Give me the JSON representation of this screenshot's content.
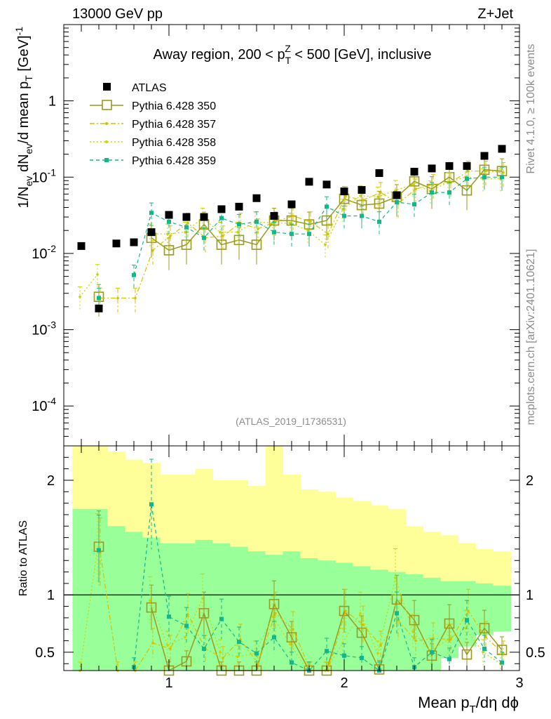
{
  "header": {
    "energy_label": "13000 GeV pp",
    "process_label": "Z+Jet",
    "region_pre": "Away region, 200 < p",
    "region_sub": "T",
    "region_sup": "Z",
    "region_post": " < 500 [GeV], inclusive",
    "analysis_id": "(ATLAS_2019_I1736531)",
    "rivet_label": "Rivet 4.1.0, ≥ 100k events",
    "mcplots_label": "mcplots.cern.ch [arXiv:2401.10621]"
  },
  "colors": {
    "ATLAS": "#000000",
    "s350": "#9a9a1e",
    "s357": "#d4c200",
    "s358": "#c8d400",
    "s359": "#13b88a",
    "band_inner": "#99ff99",
    "band_outer": "#ffff99"
  },
  "chart_data": [
    {
      "type": "scatter",
      "role": "main",
      "yscale": "log",
      "ylabel": "1/N_ev dN_ev/d mean p_T [GeV]^-1",
      "ylabel_parts": {
        "a": "1/N",
        "a_sub": "ev",
        "b": " dN",
        "b_sub": "ev",
        "c": "/d mean p",
        "c_sub": "T",
        "d": " [GeV]",
        "d_sup": "-1"
      },
      "xlim": [
        0.4,
        3.0
      ],
      "ylim": [
        3e-05,
        10
      ],
      "yticks": [
        {
          "value": 0.0001,
          "base": "10",
          "exp": "-4"
        },
        {
          "value": 0.001,
          "base": "10",
          "exp": "-3"
        },
        {
          "value": 0.01,
          "base": "10",
          "exp": "-2"
        },
        {
          "value": 0.1,
          "base": "10",
          "exp": "-1"
        },
        {
          "value": 1,
          "base": "1",
          "exp": ""
        }
      ],
      "legend_location": "top-left",
      "legend": [
        "ATLAS",
        "Pythia 6.428 350",
        "Pythia 6.428 357",
        "Pythia 6.428 358",
        "Pythia 6.428 359"
      ],
      "x": [
        0.5,
        0.6,
        0.7,
        0.8,
        0.9,
        1.0,
        1.1,
        1.2,
        1.3,
        1.4,
        1.5,
        1.6,
        1.7,
        1.8,
        1.9,
        2.0,
        2.1,
        2.2,
        2.3,
        2.4,
        2.5,
        2.6,
        2.7,
        2.8,
        2.9
      ],
      "series": [
        {
          "name": "ATLAS",
          "key": "ATLAS",
          "style": "data",
          "values": [
            0.0125,
            0.0019,
            0.0135,
            0.014,
            0.019,
            0.032,
            0.03,
            0.03,
            0.038,
            0.041,
            0.053,
            0.031,
            0.044,
            0.087,
            0.08,
            0.065,
            0.068,
            0.113,
            0.058,
            0.118,
            0.13,
            0.14,
            0.14,
            0.19,
            0.235
          ]
        },
        {
          "name": "Pythia 6.428 350",
          "key": "s350",
          "style": "open-square",
          "values": [
            null,
            0.0027,
            null,
            null,
            0.016,
            0.011,
            0.013,
            0.024,
            0.013,
            0.015,
            0.013,
            0.027,
            0.027,
            0.024,
            0.027,
            0.052,
            0.043,
            0.045,
            0.055,
            0.088,
            0.07,
            0.1,
            0.067,
            0.125,
            0.12
          ]
        },
        {
          "name": "Pythia 6.428 357",
          "key": "s357",
          "style": "dash-dot",
          "values": [
            null,
            0.0026,
            0.0026,
            0.0026,
            0.011,
            0.017,
            0.025,
            0.016,
            0.017,
            0.025,
            0.021,
            0.026,
            0.031,
            0.026,
            0.018,
            0.056,
            0.05,
            0.063,
            0.045,
            0.07,
            0.08,
            0.085,
            0.12,
            0.12,
            0.115
          ]
        },
        {
          "name": "Pythia 6.428 358",
          "key": "s358",
          "style": "dotted",
          "values": [
            0.0027,
            0.0053,
            null,
            null,
            0.018,
            0.018,
            0.019,
            0.029,
            0.019,
            0.019,
            0.026,
            0.025,
            0.025,
            0.02,
            0.013,
            0.038,
            0.057,
            0.055,
            0.067,
            0.08,
            0.066,
            0.085,
            0.1,
            0.095,
            0.095
          ]
        },
        {
          "name": "Pythia 6.428 359",
          "key": "s359",
          "style": "dashed",
          "values": [
            null,
            0.0026,
            null,
            0.0052,
            0.034,
            0.026,
            0.022,
            0.016,
            0.029,
            0.024,
            0.026,
            0.019,
            0.018,
            0.018,
            0.041,
            0.031,
            0.031,
            0.026,
            0.047,
            0.044,
            0.063,
            0.063,
            0.095,
            0.1,
            0.1
          ]
        }
      ]
    },
    {
      "type": "line",
      "role": "ratio",
      "ylabel": "Ratio to ATLAS",
      "xlabel_parts": {
        "a": "Mean p",
        "a_sub": "T",
        "b": "/dη dϕ"
      },
      "xlim": [
        0.4,
        3.0
      ],
      "ylim": [
        0.34,
        2.3
      ],
      "xticks": [
        {
          "value": 1,
          "label": "1"
        },
        {
          "value": 2,
          "label": "2"
        },
        {
          "value": 3,
          "label": "3"
        }
      ],
      "yticks": [
        {
          "value": 0.5,
          "label": "0.5"
        },
        {
          "value": 1,
          "label": "1"
        },
        {
          "value": 2,
          "label": "2"
        }
      ],
      "reference_line": 1.0,
      "bands": {
        "edges": [
          0.45,
          0.55,
          0.65,
          0.75,
          0.85,
          0.95,
          1.05,
          1.15,
          1.25,
          1.35,
          1.45,
          1.55,
          1.65,
          1.75,
          1.85,
          1.95,
          2.05,
          2.15,
          2.25,
          2.35,
          2.45,
          2.55,
          2.65,
          2.75,
          2.85,
          2.95
        ],
        "inner_low": [
          0.34,
          0.34,
          0.34,
          0.34,
          0.34,
          0.34,
          0.34,
          0.34,
          0.34,
          0.34,
          0.34,
          0.34,
          0.34,
          0.34,
          0.34,
          0.34,
          0.34,
          0.34,
          0.34,
          0.34,
          0.34,
          0.45,
          0.55,
          0.65,
          0.68
        ],
        "inner_high": [
          1.75,
          1.75,
          1.6,
          1.55,
          1.5,
          1.45,
          1.45,
          1.48,
          1.45,
          1.42,
          1.38,
          1.35,
          1.38,
          1.32,
          1.3,
          1.28,
          1.25,
          1.22,
          1.2,
          1.18,
          1.15,
          1.12,
          1.12,
          1.1,
          1.08
        ],
        "outer_low": [
          0.34,
          0.34,
          0.34,
          0.34,
          0.34,
          0.55,
          0.55,
          0.5,
          0.48,
          0.52,
          0.55,
          0.48,
          0.52,
          0.4,
          0.5,
          0.55,
          0.55,
          0.52,
          0.62,
          0.65,
          0.68,
          0.72,
          0.76,
          0.8,
          0.82
        ],
        "outer_high": [
          2.3,
          2.3,
          2.25,
          2.18,
          2.15,
          2.05,
          2.05,
          2.1,
          2.0,
          2.0,
          1.95,
          2.3,
          2.05,
          1.92,
          1.9,
          1.85,
          1.82,
          1.78,
          1.75,
          1.6,
          1.55,
          1.52,
          1.45,
          1.4,
          1.38
        ]
      },
      "series": [
        {
          "name": "Pythia 6.428 350",
          "key": "s350",
          "style": "open-square",
          "values": [
            null,
            1.42,
            null,
            null,
            0.89,
            0.34,
            0.42,
            0.84,
            0.34,
            0.34,
            0.34,
            0.92,
            0.63,
            0.34,
            0.34,
            0.86,
            0.67,
            0.35,
            0.96,
            0.78,
            0.47,
            0.75,
            0.48,
            0.71,
            0.52
          ]
        },
        {
          "name": "Pythia 6.428 357",
          "key": "s357",
          "style": "dash-dot",
          "values": [
            null,
            1.37,
            0.34,
            0.34,
            0.58,
            0.53,
            0.83,
            0.53,
            0.45,
            0.61,
            0.4,
            0.84,
            0.7,
            0.34,
            0.34,
            0.86,
            0.74,
            0.56,
            0.78,
            0.6,
            0.62,
            0.61,
            0.86,
            0.63,
            0.49
          ]
        },
        {
          "name": "Pythia 6.428 358",
          "key": "s358",
          "style": "dotted",
          "values": [
            0.34,
            1.4,
            null,
            null,
            0.95,
            0.56,
            0.63,
            0.97,
            0.5,
            0.46,
            0.49,
            0.81,
            0.57,
            0.34,
            0.34,
            0.58,
            0.84,
            0.49,
            1.15,
            0.68,
            0.51,
            0.61,
            0.71,
            0.5,
            0.4
          ]
        },
        {
          "name": "Pythia 6.428 359",
          "key": "s359",
          "style": "dashed",
          "values": [
            null,
            1.39,
            null,
            0.37,
            1.79,
            0.81,
            0.73,
            0.53,
            0.79,
            0.59,
            0.49,
            0.63,
            0.41,
            0.34,
            0.51,
            0.47,
            0.45,
            0.34,
            0.84,
            0.37,
            0.5,
            0.44,
            0.78,
            0.53,
            0.41
          ]
        }
      ]
    }
  ]
}
